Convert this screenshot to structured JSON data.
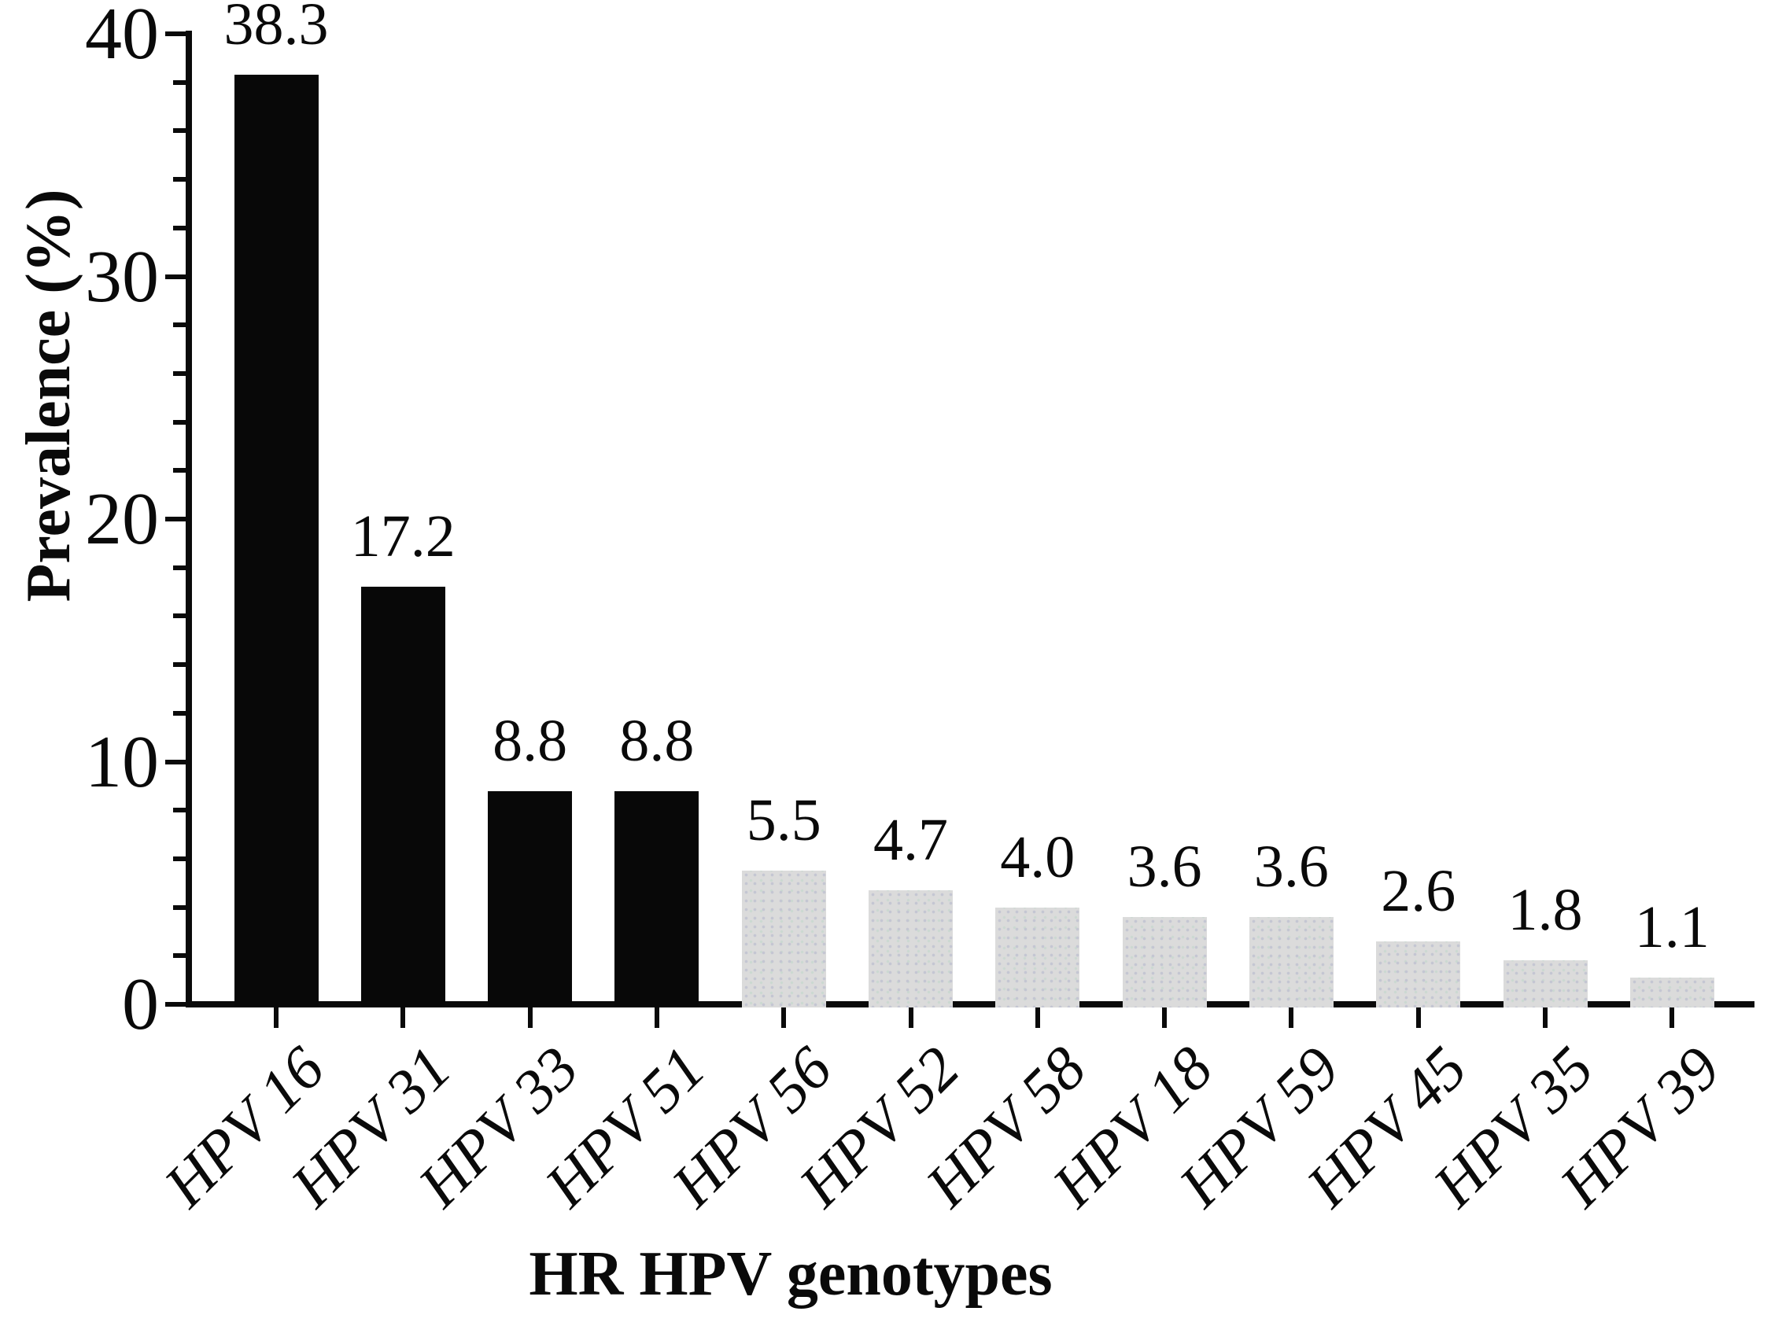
{
  "figure": {
    "background": "#ffffff"
  },
  "colors": {
    "axis": "#0a0a0a",
    "black_bar": "#080808",
    "gray_bar": "#dbdbdb",
    "gray_bar_dots": "#c4c6d2",
    "text": "#0a0a0a"
  },
  "chart_data": {
    "type": "bar",
    "title": "",
    "xlabel": "HR HPV genotypes",
    "ylabel": "Prevalence (%)",
    "categories": [
      "HPV 16",
      "HPV 31",
      "HPV 33",
      "HPV 51",
      "HPV 56",
      "HPV 52",
      "HPV 58",
      "HPV 18",
      "HPV 59",
      "HPV 45",
      "HPV 35",
      "HPV 39"
    ],
    "values": [
      38.3,
      17.2,
      8.8,
      8.8,
      5.5,
      4.7,
      4.0,
      3.6,
      3.6,
      2.6,
      1.8,
      1.1
    ],
    "data_labels": [
      "38.3",
      "17.2",
      "8.8",
      "8.8",
      "5.5",
      "4.7",
      "4.0",
      "3.6",
      "3.6",
      "2.6",
      "1.8",
      "1.1"
    ],
    "bar_color_groups": [
      "black",
      "black",
      "black",
      "black",
      "gray",
      "gray",
      "gray",
      "gray",
      "gray",
      "gray",
      "gray",
      "gray"
    ],
    "ylim": [
      0,
      40
    ],
    "y_major_ticks": [
      0,
      10,
      20,
      30,
      40
    ],
    "y_minor_step": 2,
    "grid": false,
    "legend": null,
    "data_labels_shown": true,
    "x_tick_label_rotation_deg": -45
  }
}
